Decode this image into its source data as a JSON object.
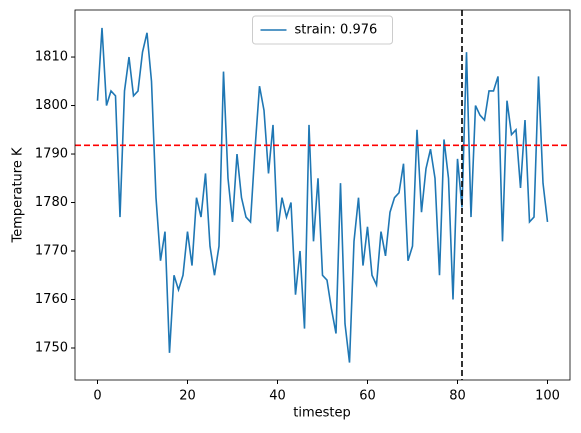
{
  "chart_data": {
    "type": "line",
    "xlabel": "timestep",
    "ylabel": "Temperature K",
    "x": [
      0,
      1,
      2,
      3,
      4,
      5,
      6,
      7,
      8,
      9,
      10,
      11,
      12,
      13,
      14,
      15,
      16,
      17,
      18,
      19,
      20,
      21,
      22,
      23,
      24,
      25,
      26,
      27,
      28,
      29,
      30,
      31,
      32,
      33,
      34,
      35,
      36,
      37,
      38,
      39,
      40,
      41,
      42,
      43,
      44,
      45,
      46,
      47,
      48,
      49,
      50,
      51,
      52,
      53,
      54,
      55,
      56,
      57,
      58,
      59,
      60,
      61,
      62,
      63,
      64,
      65,
      66,
      67,
      68,
      69,
      70,
      71,
      72,
      73,
      74,
      75,
      76,
      77,
      78,
      79,
      80,
      81,
      82,
      83,
      84,
      85,
      86,
      87,
      88,
      89,
      90,
      91,
      92,
      93,
      94,
      95,
      96,
      97,
      98,
      99,
      100
    ],
    "series": [
      {
        "name": "strain: 0.976",
        "color": "#1f77b4",
        "values": [
          1801,
          1816,
          1800,
          1803,
          1802,
          1777,
          1803,
          1810,
          1802,
          1803,
          1811,
          1815,
          1805,
          1781,
          1768,
          1774,
          1749,
          1765,
          1762,
          1765,
          1774,
          1767,
          1781,
          1777,
          1786,
          1771,
          1765,
          1771,
          1807,
          1785,
          1776,
          1790,
          1781,
          1777,
          1776,
          1791,
          1804,
          1799,
          1786,
          1796,
          1774,
          1781,
          1777,
          1780,
          1761,
          1770,
          1754,
          1796,
          1772,
          1785,
          1765,
          1764,
          1758,
          1753,
          1784,
          1755,
          1747,
          1772,
          1781,
          1767,
          1775,
          1765,
          1763,
          1774,
          1769,
          1778,
          1781,
          1782,
          1788,
          1768,
          1771,
          1795,
          1778,
          1787,
          1791,
          1785,
          1765,
          1793,
          1785,
          1760,
          1789,
          1779,
          1811,
          1777,
          1800,
          1798,
          1797,
          1803,
          1803,
          1806,
          1772,
          1801,
          1794,
          1795,
          1783,
          1797,
          1776,
          1777,
          1806,
          1784,
          1776
        ]
      }
    ],
    "hline": {
      "value": 1791.8,
      "color": "#ff0000"
    },
    "vline": {
      "value": 81,
      "color": "#000000"
    },
    "xlim": [
      -5,
      105
    ],
    "xticks": [
      0,
      20,
      40,
      60,
      80,
      100
    ],
    "ylim": [
      1743.4,
      1819.7
    ],
    "yticks": [
      1750,
      1760,
      1770,
      1780,
      1790,
      1800,
      1810
    ],
    "legend": "upper center",
    "grid": false
  }
}
